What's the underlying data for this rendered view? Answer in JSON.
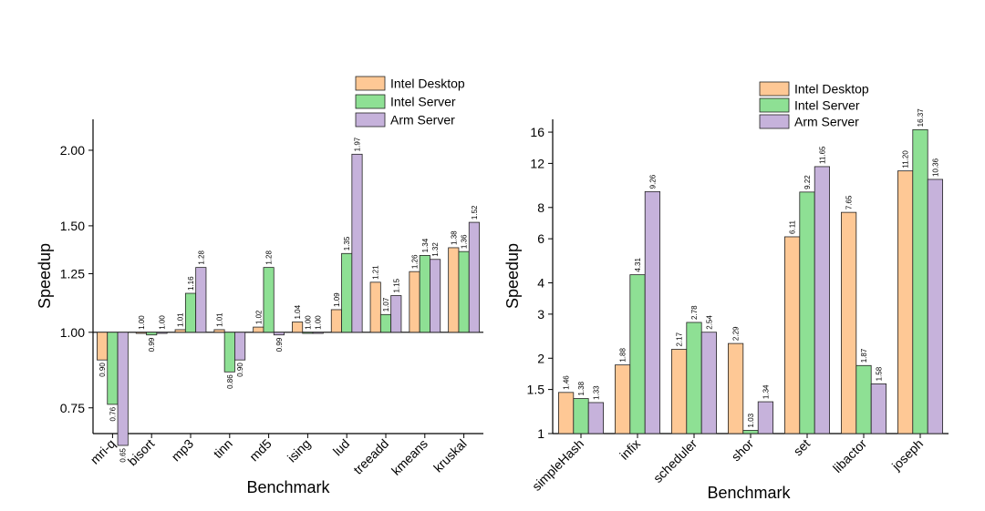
{
  "colors": {
    "Intel Desktop": "#fec895",
    "Intel Server": "#8ee094",
    "Arm Server": "#c6b2db"
  },
  "chart_data": [
    {
      "type": "bar",
      "scale": "log",
      "xlabel": "Benchmark",
      "ylabel": "Speedup",
      "ylim": [
        0.68,
        2.25
      ],
      "yticks": [
        0.75,
        1.0,
        1.25,
        1.5,
        2.0
      ],
      "ytick_labels": [
        "0.75",
        "1.00",
        "1.25",
        "1.50",
        "2.00"
      ],
      "baseline": 1.0,
      "legend_location": "top-right",
      "categories": [
        "mri-q",
        "bisort",
        "mp3",
        "tinn",
        "md5",
        "ising",
        "lud",
        "treeadd",
        "kmeans",
        "kruskal"
      ],
      "series": [
        {
          "name": "Intel Desktop",
          "values": [
            0.9,
            1.0,
            1.01,
            1.01,
            1.02,
            1.04,
            1.09,
            1.21,
            1.26,
            1.38
          ],
          "labels": [
            "0.90",
            "1.00",
            "1.01",
            "1.01",
            "1.02",
            "1.04",
            "1.09",
            "1.21",
            "1.26",
            "1.38"
          ]
        },
        {
          "name": "Intel Server",
          "values": [
            0.76,
            0.99,
            1.16,
            0.86,
            1.28,
            1.0,
            1.35,
            1.07,
            1.34,
            1.36
          ],
          "labels": [
            "0.76",
            "0.99",
            "1.16",
            "0.86",
            "1.28",
            "1.00",
            "1.35",
            "1.07",
            "1.34",
            "1.36"
          ]
        },
        {
          "name": "Arm Server",
          "values": [
            0.65,
            1.0,
            1.28,
            0.9,
            0.99,
            1.0,
            1.97,
            1.15,
            1.32,
            1.52
          ],
          "labels": [
            "0.65",
            "1.00",
            "1.28",
            "0.90",
            "0.99",
            "1.00",
            "1.97",
            "1.15",
            "1.32",
            "1.52"
          ]
        }
      ]
    },
    {
      "type": "bar",
      "scale": "log",
      "xlabel": "Benchmark",
      "ylabel": "Speedup",
      "ylim": [
        1,
        18
      ],
      "yticks": [
        1,
        1.5,
        2,
        3,
        4,
        6,
        8,
        12,
        16
      ],
      "ytick_labels": [
        "1",
        "1.5",
        "2",
        "3",
        "4",
        "6",
        "8",
        "12",
        "16"
      ],
      "baseline": 1.0,
      "legend_location": "top-right",
      "categories": [
        "simpleHash",
        "infix",
        "scheduler",
        "shor",
        "set",
        "libactor",
        "joseph"
      ],
      "series": [
        {
          "name": "Intel Desktop",
          "values": [
            1.46,
            1.88,
            2.17,
            2.29,
            6.11,
            7.65,
            11.2
          ],
          "labels": [
            "1.46",
            "1.88",
            "2.17",
            "2.29",
            "6.11",
            "7.65",
            "11.20"
          ]
        },
        {
          "name": "Intel Server",
          "values": [
            1.38,
            4.31,
            2.78,
            1.03,
            9.22,
            1.87,
            16.37
          ],
          "labels": [
            "1.38",
            "4.31",
            "2.78",
            "1.03",
            "9.22",
            "1.87",
            "16.37"
          ]
        },
        {
          "name": "Arm Server",
          "values": [
            1.33,
            9.26,
            2.54,
            1.34,
            11.65,
            1.58,
            10.36
          ],
          "labels": [
            "1.33",
            "9.26",
            "2.54",
            "1.34",
            "11.65",
            "1.58",
            "10.36"
          ]
        }
      ]
    }
  ]
}
